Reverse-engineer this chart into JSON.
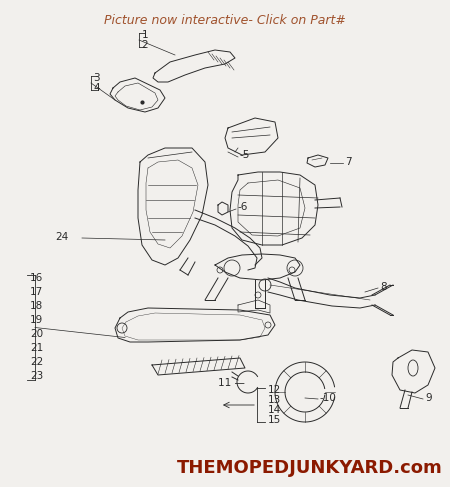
{
  "title": "Picture now interactive- Click on Part#",
  "title_color": "#A0522D",
  "bg_color": "#F2F0ED",
  "watermark": "THEMOPEDJUNKYARD.com",
  "watermark_color": "#8B1A00",
  "font_size_labels": 7.5,
  "font_size_watermark": 13,
  "font_size_title": 9,
  "line_color": "#2a2a2a",
  "lw": 0.7
}
